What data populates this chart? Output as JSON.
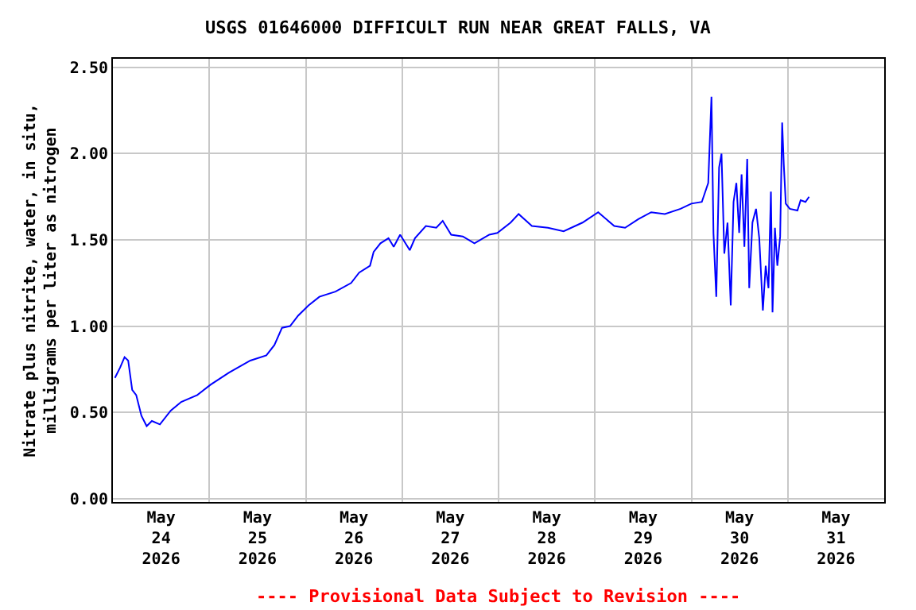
{
  "chart_data": {
    "type": "line",
    "title": "USGS 01646000 DIFFICULT RUN NEAR GREAT FALLS, VA",
    "ylabel": "Nitrate plus nitrite, water, in situ,\nmilligrams per liter as nitrogen",
    "annotations": [
      "---- Provisional Data Subject to Revision ----"
    ],
    "x": [
      "2026-05-24T00:30",
      "2026-05-24T01:48",
      "2026-05-24T02:54",
      "2026-05-24T03:48",
      "2026-05-24T04:48",
      "2026-05-24T05:48",
      "2026-05-24T07:06",
      "2026-05-24T08:24",
      "2026-05-24T09:42",
      "2026-05-24T11:42",
      "2026-05-24T14:24",
      "2026-05-24T17:00",
      "2026-05-24T21:00",
      "2026-05-25T00:18",
      "2026-05-25T04:54",
      "2026-05-25T10:12",
      "2026-05-25T14:12",
      "2026-05-25T16:12",
      "2026-05-25T18:06",
      "2026-05-25T20:06",
      "2026-05-25T22:06",
      "2026-05-26T00:42",
      "2026-05-26T03:24",
      "2026-05-26T07:24",
      "2026-05-26T11:18",
      "2026-05-26T13:18",
      "2026-05-26T16:00",
      "2026-05-26T16:54",
      "2026-05-26T18:36",
      "2026-05-26T20:36",
      "2026-05-26T21:54",
      "2026-05-26T23:30",
      "2026-05-27T01:54",
      "2026-05-27T03:12",
      "2026-05-27T05:54",
      "2026-05-27T08:30",
      "2026-05-27T10:06",
      "2026-05-27T12:12",
      "2026-05-27T15:06",
      "2026-05-27T18:00",
      "2026-05-27T21:42",
      "2026-05-27T23:42",
      "2026-05-28T03:00",
      "2026-05-28T05:00",
      "2026-05-28T08:18",
      "2026-05-28T12:18",
      "2026-05-28T16:12",
      "2026-05-28T20:54",
      "2026-05-29T00:48",
      "2026-05-29T04:48",
      "2026-05-29T07:30",
      "2026-05-29T10:48",
      "2026-05-29T14:00",
      "2026-05-29T17:24",
      "2026-05-29T21:18",
      "2026-05-30T00:00",
      "2026-05-30T02:36",
      "2026-05-30T04:12",
      "2026-05-30T05:00",
      "2026-05-30T05:30",
      "2026-05-30T06:12",
      "2026-05-30T06:54",
      "2026-05-30T07:30",
      "2026-05-30T08:12",
      "2026-05-30T09:00",
      "2026-05-30T09:48",
      "2026-05-30T10:30",
      "2026-05-30T11:12",
      "2026-05-30T11:54",
      "2026-05-30T12:30",
      "2026-05-30T13:12",
      "2026-05-30T13:54",
      "2026-05-30T14:24",
      "2026-05-30T15:12",
      "2026-05-30T16:06",
      "2026-05-30T16:54",
      "2026-05-30T17:48",
      "2026-05-30T18:30",
      "2026-05-30T19:12",
      "2026-05-30T19:48",
      "2026-05-30T20:12",
      "2026-05-30T20:48",
      "2026-05-30T21:24",
      "2026-05-30T22:06",
      "2026-05-30T22:36",
      "2026-05-30T23:00",
      "2026-05-30T23:30",
      "2026-05-31T00:30",
      "2026-05-31T02:24",
      "2026-05-31T03:12",
      "2026-05-31T04:24",
      "2026-05-31T05:18"
    ],
    "series": [
      {
        "color": "#0000ff",
        "values": [
          0.7,
          0.76,
          0.82,
          0.8,
          0.63,
          0.6,
          0.48,
          0.42,
          0.45,
          0.43,
          0.51,
          0.56,
          0.6,
          0.66,
          0.73,
          0.8,
          0.83,
          0.89,
          0.99,
          1.0,
          1.06,
          1.12,
          1.17,
          1.2,
          1.25,
          1.31,
          1.35,
          1.43,
          1.48,
          1.51,
          1.46,
          1.53,
          1.44,
          1.51,
          1.58,
          1.57,
          1.61,
          1.53,
          1.52,
          1.48,
          1.53,
          1.54,
          1.6,
          1.65,
          1.58,
          1.57,
          1.55,
          1.6,
          1.66,
          1.58,
          1.57,
          1.62,
          1.66,
          1.65,
          1.68,
          1.71,
          1.72,
          1.83,
          2.33,
          1.54,
          1.17,
          1.92,
          2.0,
          1.42,
          1.6,
          1.12,
          1.72,
          1.83,
          1.54,
          1.88,
          1.46,
          1.97,
          1.22,
          1.6,
          1.68,
          1.51,
          1.09,
          1.35,
          1.22,
          1.78,
          1.08,
          1.57,
          1.35,
          1.52,
          2.18,
          1.94,
          1.71,
          1.68,
          1.67,
          1.73,
          1.72,
          1.75
        ]
      }
    ],
    "xlim": [
      "2026-05-24T00:00",
      "2026-06-01T00:00"
    ],
    "xticks": [
      {
        "value": "2026-05-24T12:00",
        "label": "May\n24\n2026"
      },
      {
        "value": "2026-05-25T12:00",
        "label": "May\n25\n2026"
      },
      {
        "value": "2026-05-26T12:00",
        "label": "May\n26\n2026"
      },
      {
        "value": "2026-05-27T12:00",
        "label": "May\n27\n2026"
      },
      {
        "value": "2026-05-28T12:00",
        "label": "May\n28\n2026"
      },
      {
        "value": "2026-05-29T12:00",
        "label": "May\n29\n2026"
      },
      {
        "value": "2026-05-30T12:00",
        "label": "May\n30\n2026"
      },
      {
        "value": "2026-05-31T12:00",
        "label": "May\n31\n2026"
      },
      {
        "value": "2026-05-25T00:00",
        "label": null
      },
      {
        "value": "2026-05-26T00:00",
        "label": null
      },
      {
        "value": "2026-05-27T00:00",
        "label": null
      },
      {
        "value": "2026-05-28T00:00",
        "label": null
      },
      {
        "value": "2026-05-29T00:00",
        "label": null
      },
      {
        "value": "2026-05-30T00:00",
        "label": null
      },
      {
        "value": "2026-05-31T00:00",
        "label": null
      }
    ],
    "ylim": [
      -0.02,
      2.55
    ],
    "yticks": [
      {
        "value": 0,
        "label": "0.00"
      },
      {
        "value": 0.5,
        "label": "0.50"
      },
      {
        "value": 1,
        "label": "1.00"
      },
      {
        "value": 1.5,
        "label": "1.50"
      },
      {
        "value": 2,
        "label": "2.00"
      },
      {
        "value": 2.5,
        "label": "2.50"
      }
    ],
    "grid": true
  }
}
